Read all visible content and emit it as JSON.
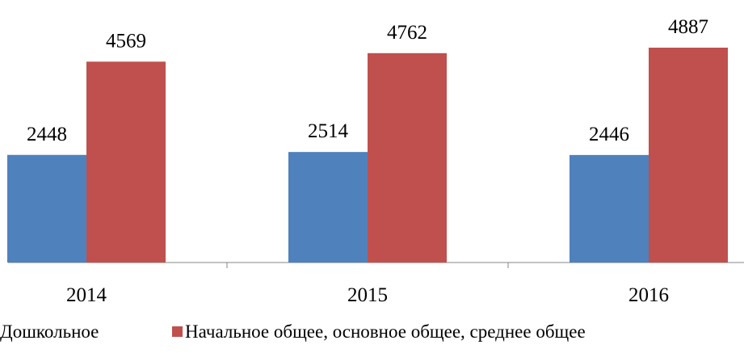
{
  "chart_data": {
    "type": "bar",
    "categories": [
      "2014",
      "2015",
      "2016"
    ],
    "series": [
      {
        "name": "Дошкольное",
        "color": "#4f81bd",
        "values": [
          2448,
          2514,
          2446
        ]
      },
      {
        "name": "Начальное общее, основное общее, среднее общее",
        "color": "#c0504d",
        "values": [
          4569,
          4762,
          4887
        ]
      }
    ]
  }
}
